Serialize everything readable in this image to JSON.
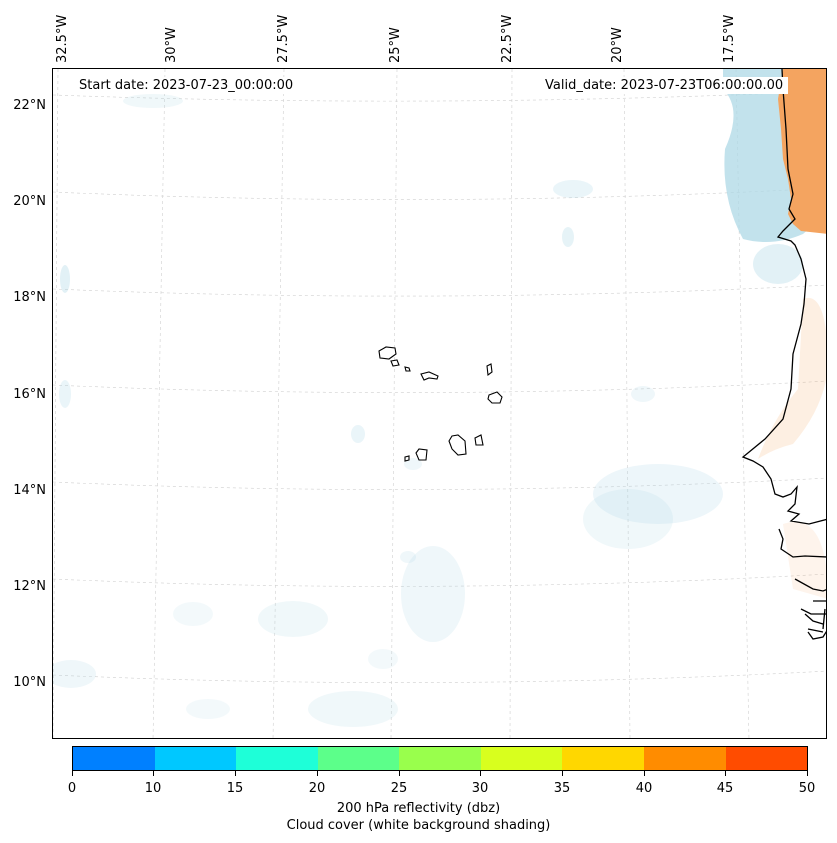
{
  "map": {
    "start_date": "Start date: 2023-07-23_00:00:00",
    "valid_date": "Valid_date: 2023-07-23T06:00:00.00",
    "longitude_labels": [
      "32.5°W",
      "30°W",
      "27.5°W",
      "25°W",
      "22.5°W",
      "20°W",
      "17.5°W"
    ],
    "latitude_labels": [
      "22°N",
      "20°N",
      "18°N",
      "16°N",
      "14°N",
      "12°N",
      "10°N"
    ],
    "land_color": "#f4a460",
    "cloud_color": "#add8e6"
  },
  "colorbar": {
    "ticks": [
      "0",
      "10",
      "15",
      "20",
      "25",
      "30",
      "35",
      "40",
      "45",
      "50"
    ],
    "colors": [
      "#0080ff",
      "#00c8ff",
      "#1effd8",
      "#5cff8a",
      "#99ff4c",
      "#d8ff1e",
      "#ffd700",
      "#ff8c00",
      "#ff4c00"
    ],
    "label_line1": "200 hPa reflectivity (dbz)",
    "label_line2": "Cloud cover (white background shading)"
  }
}
